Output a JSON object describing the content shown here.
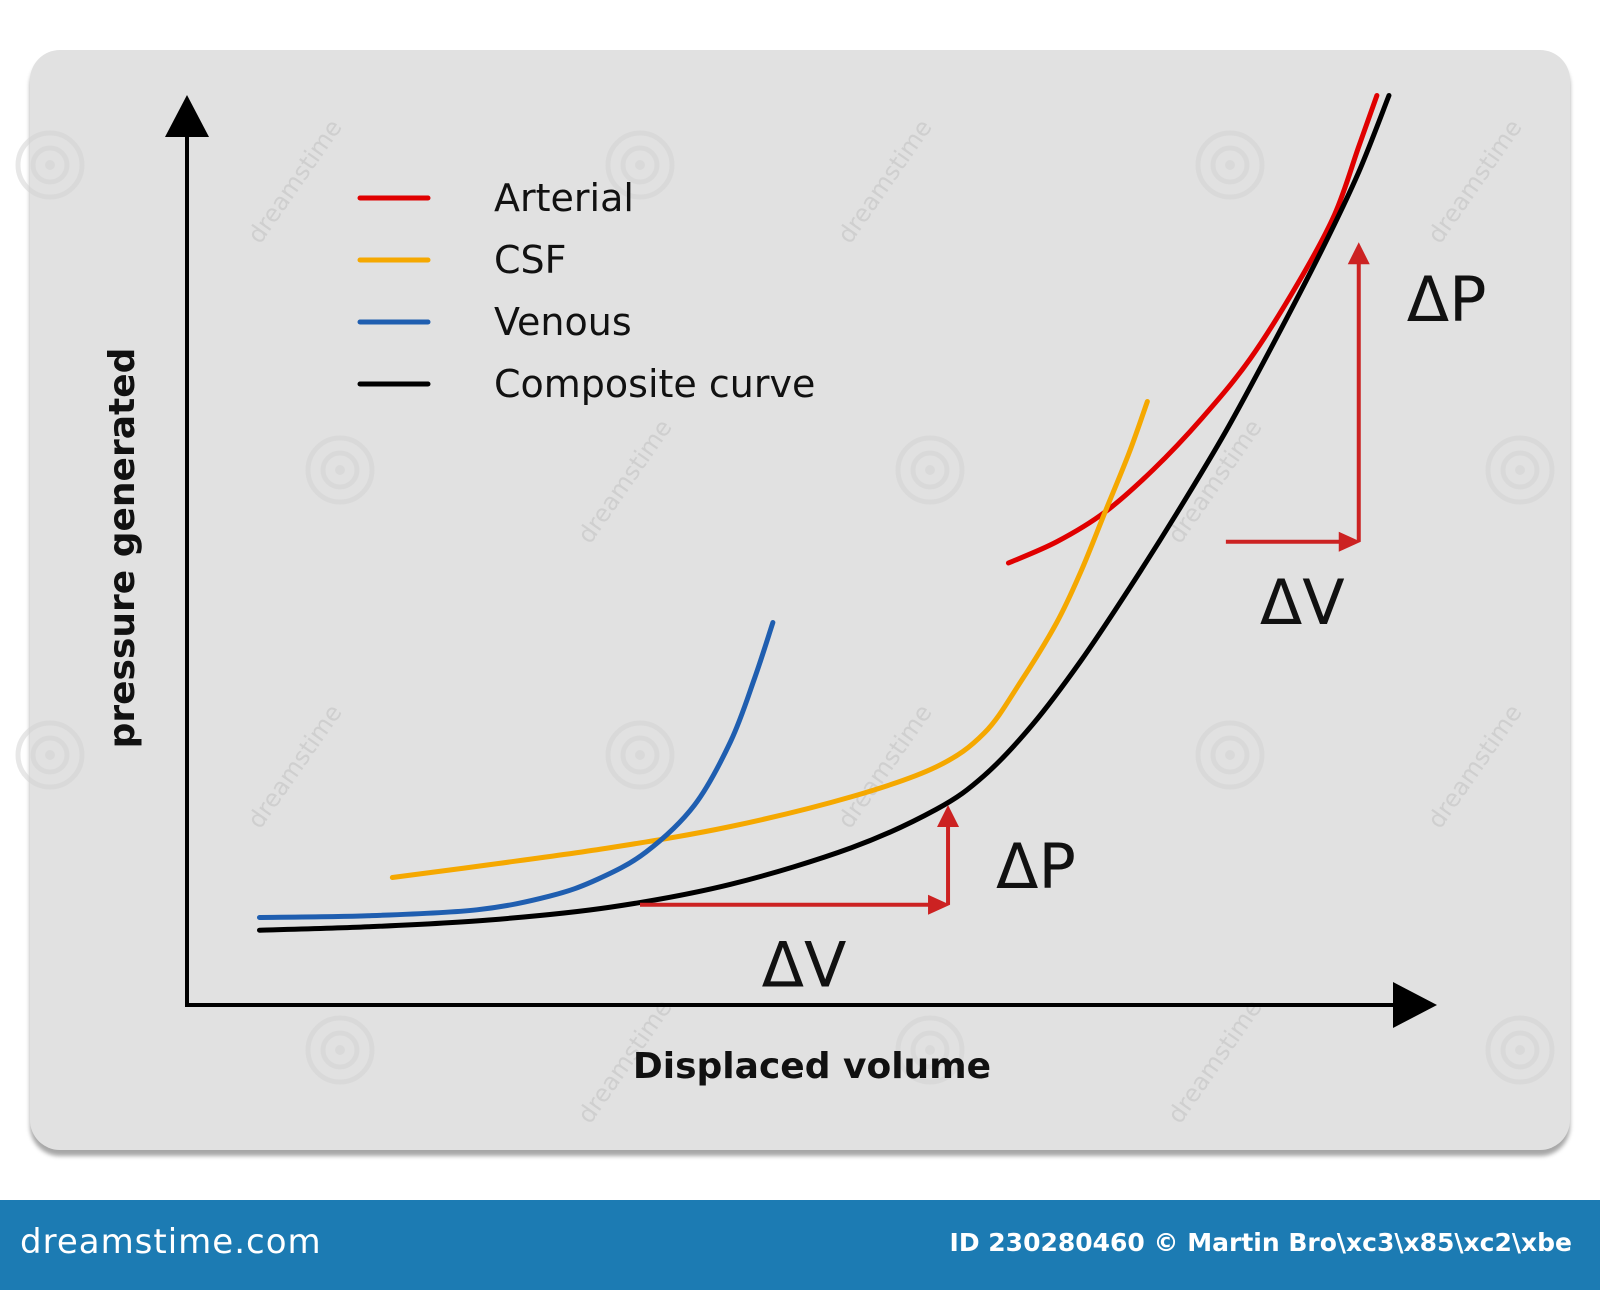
{
  "chart_data": {
    "type": "line",
    "title": "",
    "xlabel": "Displaced volume",
    "ylabel": "pressure generated",
    "xlim": [
      0,
      100
    ],
    "ylim": [
      0,
      100
    ],
    "grid": false,
    "legend_position": "top-left",
    "series": [
      {
        "name": "Arterial",
        "color": "#e00000",
        "x": [
          68,
          72,
          76,
          80,
          84,
          88,
          92,
          95,
          97,
          98.5
        ],
        "y": [
          52,
          54.5,
          58,
          63,
          69,
          76,
          85,
          93,
          101,
          107
        ]
      },
      {
        "name": "CSF",
        "color": "#f5a800",
        "x": [
          17,
          25,
          35,
          45,
          55,
          62,
          66,
          69,
          72,
          74,
          76,
          78,
          79.5
        ],
        "y": [
          15,
          16.5,
          18.5,
          21,
          24.5,
          28,
          32,
          38,
          45,
          51,
          58,
          65,
          71
        ]
      },
      {
        "name": "Venous",
        "color": "#1f5eb0",
        "x": [
          6,
          15,
          24,
          30,
          34,
          38,
          42,
          45,
          47,
          48.5
        ],
        "y": [
          10.3,
          10.5,
          11.2,
          12.8,
          14.8,
          18,
          23.5,
          31,
          38.5,
          45
        ]
      },
      {
        "name": "Composite curve",
        "color": "#000000",
        "x": [
          6,
          15,
          25,
          35,
          45,
          55,
          62,
          66,
          70,
          74,
          78,
          82,
          86,
          90,
          94,
          97,
          99.5
        ],
        "y": [
          8.8,
          9.2,
          10,
          11.5,
          14.2,
          18.5,
          23,
          27,
          33,
          40.5,
          49,
          58,
          67.5,
          78,
          89,
          98,
          107
        ]
      }
    ],
    "annotations": [
      {
        "id": "low",
        "dv_label": "ΔV",
        "dp_label": "ΔP",
        "x_from": 37.5,
        "x_to": 63,
        "y_from": 11.8,
        "y_to": 23.3
      },
      {
        "id": "high",
        "dv_label": "ΔV",
        "dp_label": "ΔP",
        "x_from": 86,
        "x_to": 97,
        "y_from": 54.5,
        "y_to": 89.5
      }
    ]
  },
  "watermark": "dreamstime",
  "footer": {
    "brand": "dreamstime.com",
    "credit": "ID 230280460 © Martin Bro\\xc3\\x85\\xc2\\xbe"
  },
  "colors": {
    "panel": "#e1e1e1",
    "footer": "#1c7bb3",
    "annotation": "#cc2222"
  }
}
